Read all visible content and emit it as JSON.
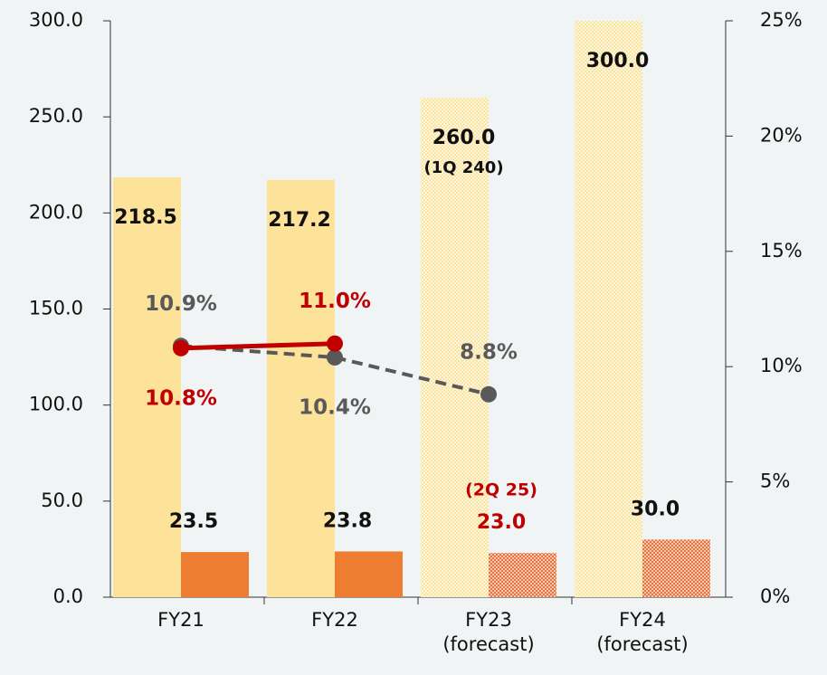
{
  "chart_data": {
    "type": "bar",
    "categories": [
      "FY21",
      "FY22",
      "FY23 (forecast)",
      "FY24 (forecast)"
    ],
    "ylim": [
      0,
      300
    ],
    "yticks": [
      {
        "value": 0,
        "label": "0.0"
      },
      {
        "value": 50,
        "label": "50.0"
      },
      {
        "value": 100,
        "label": "100.0"
      },
      {
        "value": 150,
        "label": "150.0"
      },
      {
        "value": 200,
        "label": "200.0"
      },
      {
        "value": 250,
        "label": "250.0"
      },
      {
        "value": 300,
        "label": "300.0"
      }
    ],
    "y2lim": [
      0,
      25
    ],
    "y2ticks": [
      {
        "value": 0,
        "label": "0%"
      },
      {
        "value": 5,
        "label": "5%"
      },
      {
        "value": 10,
        "label": "10%"
      },
      {
        "value": 15,
        "label": "15%"
      },
      {
        "value": 20,
        "label": "20%"
      },
      {
        "value": 25,
        "label": "25%"
      }
    ],
    "annotations": [
      "(1Q 240)",
      "(2Q 25)"
    ],
    "series": [
      {
        "type": "bar",
        "color": "#fde39a",
        "values": [
          218.5,
          217.2,
          260,
          300
        ],
        "value_labels": [
          "218.5",
          "217.2",
          "260.0",
          "300.0"
        ],
        "hatched": [
          false,
          false,
          true,
          true
        ],
        "label_color": [
          "#111111",
          "#111111",
          "#111111",
          "#111111"
        ]
      },
      {
        "type": "bar",
        "color": "#ed7d31",
        "values": [
          23.5,
          23.8,
          23,
          30
        ],
        "value_labels": [
          "23.5",
          "23.8",
          "23.0",
          "30.0"
        ],
        "hatched": [
          false,
          false,
          true,
          true
        ],
        "label_color": [
          "#111111",
          "#111111",
          "#c00000",
          "#111111"
        ]
      },
      {
        "type": "line",
        "axis": "y2",
        "color": "#c00000",
        "dashed": false,
        "values": [
          10.8,
          11.0,
          null,
          null
        ],
        "value_labels": [
          "10.8%",
          "11.0%",
          null,
          null
        ]
      },
      {
        "type": "line",
        "axis": "y2",
        "color": "#595959",
        "dashed": true,
        "values": [
          10.9,
          10.4,
          8.8,
          null
        ],
        "value_labels": [
          "10.9%",
          "10.4%",
          "8.8%",
          null
        ]
      }
    ]
  }
}
